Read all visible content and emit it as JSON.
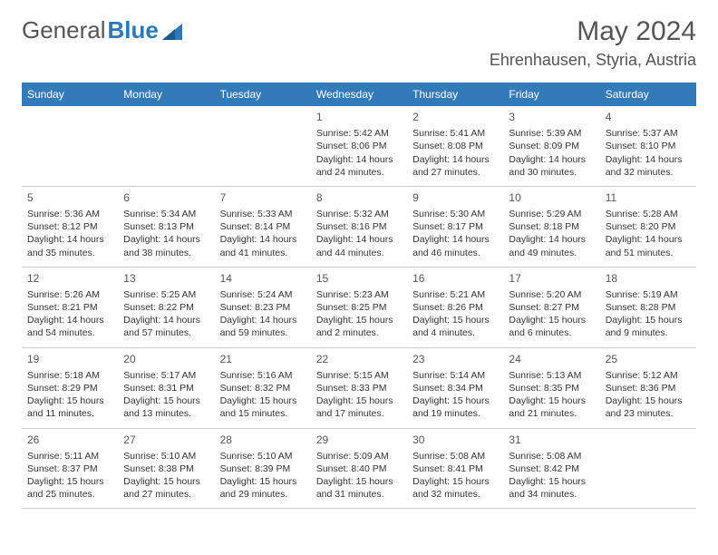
{
  "logo": {
    "text1": "General",
    "text2": "Blue"
  },
  "title": {
    "month": "May 2024",
    "location": "Ehrenhausen, Styria, Austria"
  },
  "colors": {
    "header_bg": "#357ab8",
    "header_text": "#ffffff",
    "border": "#cccccc",
    "text": "#333333",
    "logo_accent": "#2a7ab9"
  },
  "calendar": {
    "day_names": [
      "Sunday",
      "Monday",
      "Tuesday",
      "Wednesday",
      "Thursday",
      "Friday",
      "Saturday"
    ],
    "weeks": [
      [
        null,
        null,
        null,
        {
          "n": "1",
          "sr": "Sunrise: 5:42 AM",
          "ss": "Sunset: 8:06 PM",
          "d1": "Daylight: 14 hours",
          "d2": "and 24 minutes."
        },
        {
          "n": "2",
          "sr": "Sunrise: 5:41 AM",
          "ss": "Sunset: 8:08 PM",
          "d1": "Daylight: 14 hours",
          "d2": "and 27 minutes."
        },
        {
          "n": "3",
          "sr": "Sunrise: 5:39 AM",
          "ss": "Sunset: 8:09 PM",
          "d1": "Daylight: 14 hours",
          "d2": "and 30 minutes."
        },
        {
          "n": "4",
          "sr": "Sunrise: 5:37 AM",
          "ss": "Sunset: 8:10 PM",
          "d1": "Daylight: 14 hours",
          "d2": "and 32 minutes."
        }
      ],
      [
        {
          "n": "5",
          "sr": "Sunrise: 5:36 AM",
          "ss": "Sunset: 8:12 PM",
          "d1": "Daylight: 14 hours",
          "d2": "and 35 minutes."
        },
        {
          "n": "6",
          "sr": "Sunrise: 5:34 AM",
          "ss": "Sunset: 8:13 PM",
          "d1": "Daylight: 14 hours",
          "d2": "and 38 minutes."
        },
        {
          "n": "7",
          "sr": "Sunrise: 5:33 AM",
          "ss": "Sunset: 8:14 PM",
          "d1": "Daylight: 14 hours",
          "d2": "and 41 minutes."
        },
        {
          "n": "8",
          "sr": "Sunrise: 5:32 AM",
          "ss": "Sunset: 8:16 PM",
          "d1": "Daylight: 14 hours",
          "d2": "and 44 minutes."
        },
        {
          "n": "9",
          "sr": "Sunrise: 5:30 AM",
          "ss": "Sunset: 8:17 PM",
          "d1": "Daylight: 14 hours",
          "d2": "and 46 minutes."
        },
        {
          "n": "10",
          "sr": "Sunrise: 5:29 AM",
          "ss": "Sunset: 8:18 PM",
          "d1": "Daylight: 14 hours",
          "d2": "and 49 minutes."
        },
        {
          "n": "11",
          "sr": "Sunrise: 5:28 AM",
          "ss": "Sunset: 8:20 PM",
          "d1": "Daylight: 14 hours",
          "d2": "and 51 minutes."
        }
      ],
      [
        {
          "n": "12",
          "sr": "Sunrise: 5:26 AM",
          "ss": "Sunset: 8:21 PM",
          "d1": "Daylight: 14 hours",
          "d2": "and 54 minutes."
        },
        {
          "n": "13",
          "sr": "Sunrise: 5:25 AM",
          "ss": "Sunset: 8:22 PM",
          "d1": "Daylight: 14 hours",
          "d2": "and 57 minutes."
        },
        {
          "n": "14",
          "sr": "Sunrise: 5:24 AM",
          "ss": "Sunset: 8:23 PM",
          "d1": "Daylight: 14 hours",
          "d2": "and 59 minutes."
        },
        {
          "n": "15",
          "sr": "Sunrise: 5:23 AM",
          "ss": "Sunset: 8:25 PM",
          "d1": "Daylight: 15 hours",
          "d2": "and 2 minutes."
        },
        {
          "n": "16",
          "sr": "Sunrise: 5:21 AM",
          "ss": "Sunset: 8:26 PM",
          "d1": "Daylight: 15 hours",
          "d2": "and 4 minutes."
        },
        {
          "n": "17",
          "sr": "Sunrise: 5:20 AM",
          "ss": "Sunset: 8:27 PM",
          "d1": "Daylight: 15 hours",
          "d2": "and 6 minutes."
        },
        {
          "n": "18",
          "sr": "Sunrise: 5:19 AM",
          "ss": "Sunset: 8:28 PM",
          "d1": "Daylight: 15 hours",
          "d2": "and 9 minutes."
        }
      ],
      [
        {
          "n": "19",
          "sr": "Sunrise: 5:18 AM",
          "ss": "Sunset: 8:29 PM",
          "d1": "Daylight: 15 hours",
          "d2": "and 11 minutes."
        },
        {
          "n": "20",
          "sr": "Sunrise: 5:17 AM",
          "ss": "Sunset: 8:31 PM",
          "d1": "Daylight: 15 hours",
          "d2": "and 13 minutes."
        },
        {
          "n": "21",
          "sr": "Sunrise: 5:16 AM",
          "ss": "Sunset: 8:32 PM",
          "d1": "Daylight: 15 hours",
          "d2": "and 15 minutes."
        },
        {
          "n": "22",
          "sr": "Sunrise: 5:15 AM",
          "ss": "Sunset: 8:33 PM",
          "d1": "Daylight: 15 hours",
          "d2": "and 17 minutes."
        },
        {
          "n": "23",
          "sr": "Sunrise: 5:14 AM",
          "ss": "Sunset: 8:34 PM",
          "d1": "Daylight: 15 hours",
          "d2": "and 19 minutes."
        },
        {
          "n": "24",
          "sr": "Sunrise: 5:13 AM",
          "ss": "Sunset: 8:35 PM",
          "d1": "Daylight: 15 hours",
          "d2": "and 21 minutes."
        },
        {
          "n": "25",
          "sr": "Sunrise: 5:12 AM",
          "ss": "Sunset: 8:36 PM",
          "d1": "Daylight: 15 hours",
          "d2": "and 23 minutes."
        }
      ],
      [
        {
          "n": "26",
          "sr": "Sunrise: 5:11 AM",
          "ss": "Sunset: 8:37 PM",
          "d1": "Daylight: 15 hours",
          "d2": "and 25 minutes."
        },
        {
          "n": "27",
          "sr": "Sunrise: 5:10 AM",
          "ss": "Sunset: 8:38 PM",
          "d1": "Daylight: 15 hours",
          "d2": "and 27 minutes."
        },
        {
          "n": "28",
          "sr": "Sunrise: 5:10 AM",
          "ss": "Sunset: 8:39 PM",
          "d1": "Daylight: 15 hours",
          "d2": "and 29 minutes."
        },
        {
          "n": "29",
          "sr": "Sunrise: 5:09 AM",
          "ss": "Sunset: 8:40 PM",
          "d1": "Daylight: 15 hours",
          "d2": "and 31 minutes."
        },
        {
          "n": "30",
          "sr": "Sunrise: 5:08 AM",
          "ss": "Sunset: 8:41 PM",
          "d1": "Daylight: 15 hours",
          "d2": "and 32 minutes."
        },
        {
          "n": "31",
          "sr": "Sunrise: 5:08 AM",
          "ss": "Sunset: 8:42 PM",
          "d1": "Daylight: 15 hours",
          "d2": "and 34 minutes."
        },
        null
      ]
    ]
  }
}
